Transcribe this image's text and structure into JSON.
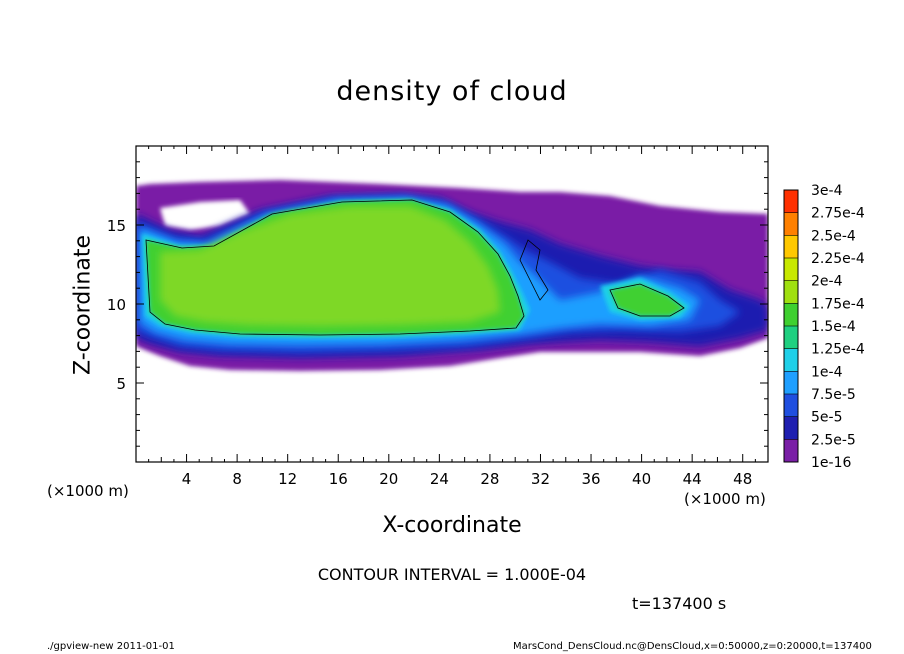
{
  "chart_data": {
    "type": "heatmap",
    "title": "density of cloud",
    "xlabel": "X-coordinate",
    "ylabel": "Z-coordinate",
    "x_unit": "(×1000 m)",
    "xlim": [
      0,
      50
    ],
    "ylim": [
      0,
      20
    ],
    "x_ticks": [
      4,
      8,
      12,
      16,
      20,
      24,
      28,
      32,
      36,
      40,
      44,
      48
    ],
    "y_ticks": [
      5,
      10,
      15
    ],
    "colorbar": {
      "levels": [
        "1e-16",
        "2.5e-5",
        "5e-5",
        "7.5e-5",
        "1e-4",
        "1.25e-4",
        "1.5e-4",
        "1.75e-4",
        "2e-4",
        "2.25e-4",
        "2.5e-4",
        "2.75e-4",
        "3e-4"
      ],
      "colors": [
        "#7a1fa6",
        "#1f1fb0",
        "#1f4fe0",
        "#1f9fff",
        "#1fd0e8",
        "#1fd080",
        "#3fd030",
        "#a0e010",
        "#c8e800",
        "#ffc800",
        "#ff8000",
        "#ff3000",
        "#ff9090"
      ]
    },
    "contour_interval": "CONTOUR INTERVAL = 1.000E-04",
    "time_label": "t=137400 s"
  },
  "footer": {
    "left": "./gpview-new  2011-01-01",
    "right": "MarsCond_DensCloud.nc@DensCloud,x=0:50000,z=0:20000,t=137400"
  }
}
